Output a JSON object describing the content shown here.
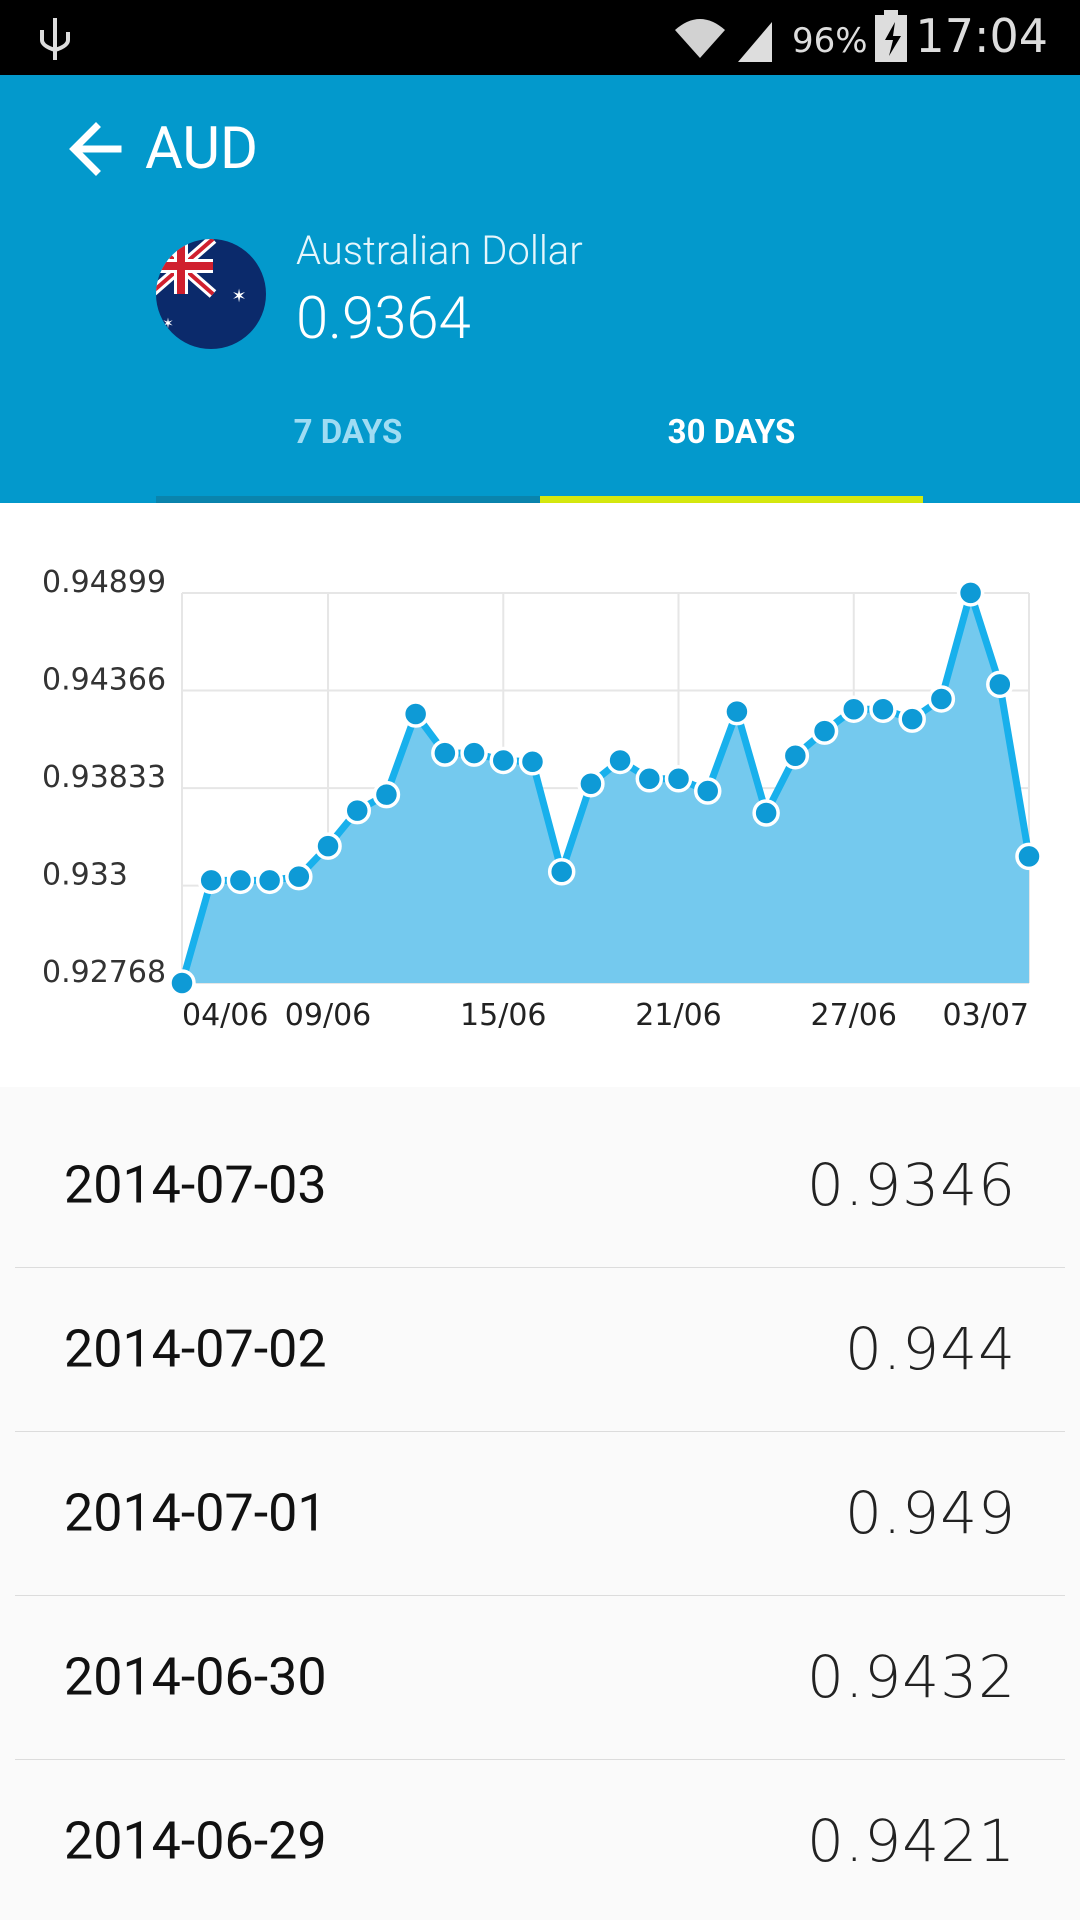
{
  "status_bar": {
    "battery": "96%",
    "time": "17:04"
  },
  "header": {
    "code": "AUD",
    "name": "Australian Dollar",
    "rate": "0.9364"
  },
  "tabs": [
    "7 DAYS",
    "30 DAYS"
  ],
  "chart_data": {
    "type": "area",
    "categories": [
      "04/06",
      null,
      null,
      null,
      null,
      "09/06",
      null,
      null,
      null,
      null,
      null,
      "15/06",
      null,
      null,
      null,
      null,
      null,
      "21/06",
      null,
      null,
      null,
      null,
      null,
      "27/06",
      null,
      null,
      null,
      null,
      null,
      "03/07"
    ],
    "series": [
      {
        "name": "AUD",
        "color": "#18b0ec",
        "fill": "#74c9ee",
        "marker_color": "#0e9ad6",
        "values": [
          0.92768,
          0.93329,
          0.93329,
          0.93329,
          0.93349,
          0.93516,
          0.9371,
          0.93797,
          0.94238,
          0.94024,
          0.94024,
          0.93984,
          0.93977,
          0.93376,
          0.93857,
          0.93984,
          0.93884,
          0.93884,
          0.93817,
          0.94251,
          0.93697,
          0.9401,
          0.94144,
          0.94264,
          0.94264,
          0.9421,
          0.9432,
          0.949,
          0.944,
          0.9346
        ]
      }
    ],
    "ylim": [
      0.92768,
      0.94899
    ],
    "yticks": [
      0.92768,
      0.933,
      0.93833,
      0.94366,
      0.94899
    ],
    "grid": true
  },
  "list": {
    "rows": [
      [
        "2014-07-03",
        "0.9346"
      ],
      [
        "2014-07-02",
        "0.944"
      ],
      [
        "2014-07-01",
        "0.949"
      ],
      [
        "2014-06-30",
        "0.9432"
      ],
      [
        "2014-06-29",
        "0.9421"
      ]
    ]
  }
}
